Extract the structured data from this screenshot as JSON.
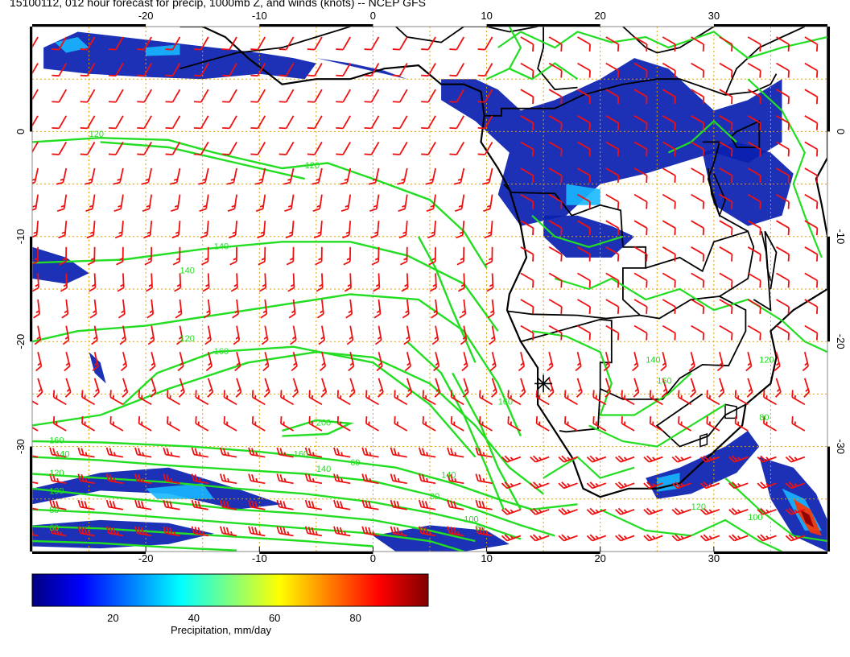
{
  "title": "15100112, 012 hour forecast for precip, 1000mb Z, and winds (knots) -- NCEP GFS",
  "map": {
    "lon_range": [
      -30,
      40
    ],
    "lat_range": [
      -40,
      10
    ],
    "lon_ticks": [
      "-20",
      "-10",
      "0",
      "10",
      "20",
      "30"
    ],
    "lat_ticks": [
      "0",
      "-10",
      "-20",
      "-30"
    ],
    "grid_color": "#e0a000",
    "coastline_color": "#000000",
    "contour_color": "#22dd22",
    "barb_color": "#ee1111",
    "marker": {
      "symbol": "asterisk",
      "lon": 15,
      "lat": -24
    }
  },
  "contour_labels": [
    "120",
    "120",
    "140",
    "140",
    "120",
    "160",
    "160",
    "200",
    "160",
    "140",
    "120",
    "100",
    "80",
    "60",
    "60",
    "160",
    "140",
    "140",
    "80",
    "100",
    "120",
    "100",
    "140",
    "160",
    "120",
    "60",
    "80"
  ],
  "colorbar": {
    "label": "Precipitation, mm/day",
    "ticks": [
      "20",
      "40",
      "60",
      "80"
    ],
    "tick_values": [
      20,
      40,
      60,
      80
    ],
    "range": [
      0,
      98
    ],
    "colors": [
      "#00007f",
      "#0000ff",
      "#007fff",
      "#00ffff",
      "#7fff7f",
      "#ffff00",
      "#ff7f00",
      "#ff0000",
      "#7f0000"
    ]
  }
}
